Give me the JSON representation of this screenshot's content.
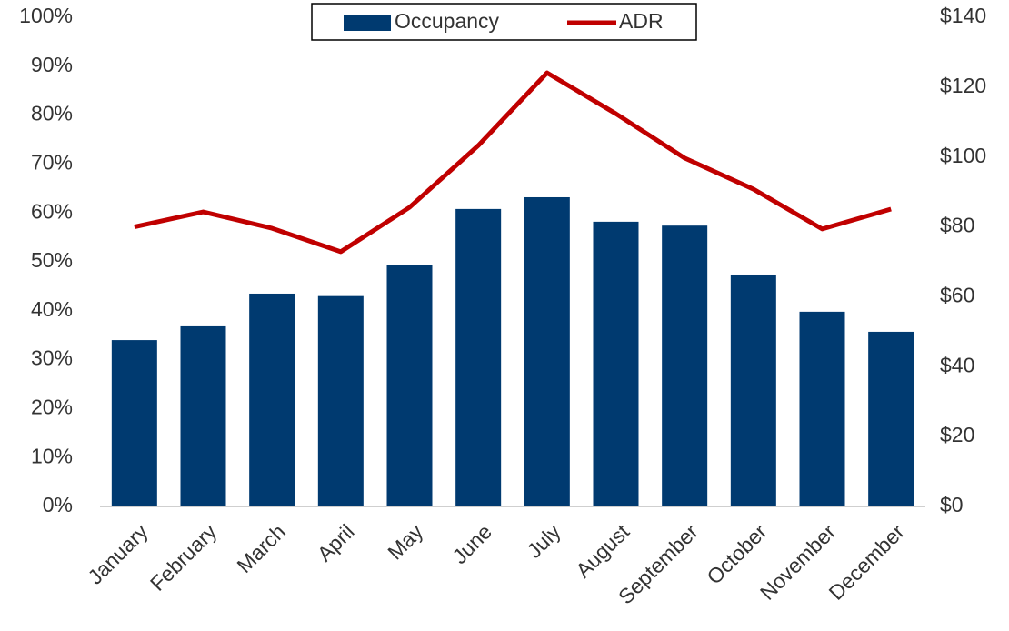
{
  "chart_data": {
    "type": "bar_line",
    "categories": [
      "January",
      "February",
      "March",
      "April",
      "May",
      "June",
      "July",
      "August",
      "September",
      "October",
      "November",
      "December"
    ],
    "series": [
      {
        "name": "Occupancy",
        "type": "bar",
        "color": "#003a70",
        "values": [
          34,
          37,
          43.5,
          43,
          49.3,
          60.8,
          63.2,
          58.2,
          57.4,
          47.4,
          39.8,
          35.7
        ]
      },
      {
        "name": "ADR",
        "type": "line",
        "axis": "y2",
        "color": "#c00000",
        "values": [
          80,
          84.3,
          79.6,
          72.9,
          85.6,
          103.3,
          124.1,
          112.4,
          99.7,
          90.8,
          79.4,
          85.1
        ]
      }
    ],
    "ylim": [
      0,
      100
    ],
    "yticks": [
      {
        "value": 0,
        "label": "0%"
      },
      {
        "value": 10,
        "label": "10%"
      },
      {
        "value": 20,
        "label": "20%"
      },
      {
        "value": 30,
        "label": "30%"
      },
      {
        "value": 40,
        "label": "40%"
      },
      {
        "value": 50,
        "label": "50%"
      },
      {
        "value": 60,
        "label": "60%"
      },
      {
        "value": 70,
        "label": "70%"
      },
      {
        "value": 80,
        "label": "80%"
      },
      {
        "value": 90,
        "label": "90%"
      },
      {
        "value": 100,
        "label": "100%"
      }
    ],
    "y2lim": [
      0,
      140
    ],
    "y2ticks": [
      {
        "value": 0,
        "label": "$0"
      },
      {
        "value": 20,
        "label": "$20"
      },
      {
        "value": 40,
        "label": "$40"
      },
      {
        "value": 60,
        "label": "$60"
      },
      {
        "value": 80,
        "label": "$80"
      },
      {
        "value": 100,
        "label": "$100"
      },
      {
        "value": 120,
        "label": "$120"
      },
      {
        "value": 140,
        "label": "$140"
      }
    ],
    "grid": false,
    "legend": "top"
  }
}
